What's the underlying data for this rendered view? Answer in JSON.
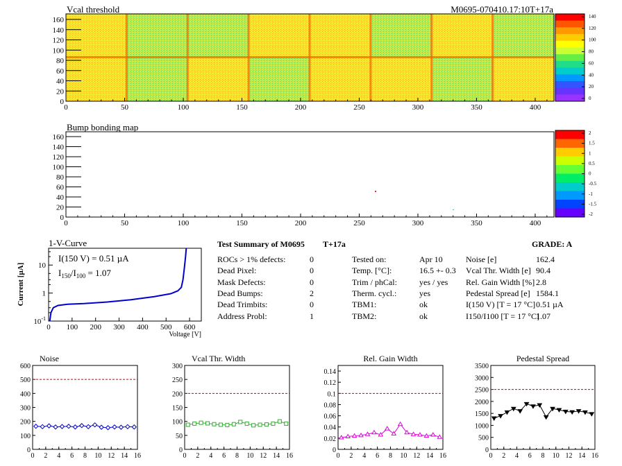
{
  "header": {
    "vcal_title": "Vcal threshold",
    "module_id": "M0695-070410.17:10T+17a",
    "bump_title": "Bump bonding map"
  },
  "map_axes": {
    "x_ticks": [
      "0",
      "50",
      "100",
      "150",
      "200",
      "250",
      "300",
      "350",
      "400"
    ],
    "y_ticks": [
      "0",
      "20",
      "40",
      "60",
      "80",
      "100",
      "120",
      "140",
      "160"
    ],
    "xlim": [
      0,
      416
    ],
    "ylim": [
      0,
      160
    ]
  },
  "vcal_palette": {
    "labels": [
      "140",
      "120",
      "100",
      "80",
      "60",
      "40",
      "20",
      "0"
    ],
    "colors": [
      "#ff0000",
      "#ff5500",
      "#ff9900",
      "#ffcc00",
      "#ffff00",
      "#ccff33",
      "#66ee44",
      "#22dd88",
      "#00cccc",
      "#0099ff",
      "#3355ff",
      "#6633ff",
      "#9933ff"
    ]
  },
  "bump_palette": {
    "labels": [
      "2",
      "1.5",
      "1",
      "0.5",
      "0",
      "-0.5",
      "-1",
      "-1.5",
      "-2"
    ],
    "colors": [
      "#ff0000",
      "#ff6600",
      "#ffcc00",
      "#ccff00",
      "#66ff33",
      "#00ee66",
      "#00cccc",
      "#0099ff",
      "#0044ff",
      "#6600ff"
    ]
  },
  "iv_curve": {
    "title": "1-V-Curve",
    "ylabel": "Current [µA]",
    "xlabel": "Voltage [V]",
    "i150_label": "I(150 V) = 0.51 µA",
    "ratio_label_i": "I",
    "ratio_sub1": "150",
    "ratio_slash": "/I",
    "ratio_sub2": "100",
    "ratio_value": " =  1.07",
    "x_ticks": [
      "0",
      "100",
      "200",
      "300",
      "400",
      "500",
      "600"
    ],
    "y_ticks": [
      "1",
      "10"
    ],
    "y_min_base": "10",
    "y_min_exp": "-1"
  },
  "summary": {
    "title": "Test Summary of M0695",
    "temp_tag": "T+17a",
    "grade_label": "GRADE:  A",
    "col1": [
      {
        "label": "ROCs > 1% defects:",
        "value": "0"
      },
      {
        "label": "Dead Pixel:",
        "value": "0"
      },
      {
        "label": "Mask Defects:",
        "value": "0"
      },
      {
        "label": "Dead Bumps:",
        "value": "2"
      },
      {
        "label": "Dead Trimbits:",
        "value": "0"
      },
      {
        "label": "Address Probl:",
        "value": "1"
      }
    ],
    "col2": [
      {
        "label": "Tested on:",
        "value": "Apr 10"
      },
      {
        "label": "Temp. [°C]:",
        "value": "16.5 +- 0.3"
      },
      {
        "label": "Trim / phCal:",
        "value": "yes / yes"
      },
      {
        "label": "Therm. cycl.:",
        "value": "yes"
      },
      {
        "label": "TBM1:",
        "value": "ok"
      },
      {
        "label": "TBM2:",
        "value": "ok"
      }
    ],
    "col3": [
      {
        "label": "Noise [e]",
        "value": "162.4"
      },
      {
        "label": "Vcal Thr. Width [e]",
        "value": "90.4"
      },
      {
        "label": "Rel. Gain Width [%]",
        "value": "2.8"
      },
      {
        "label": "Pedestal Spread [e]",
        "value": "1584.1"
      },
      {
        "label": "I(150 V) [T = 17 °C]",
        "value": "0.51 µA"
      },
      {
        "label": "I150/I100  [T = 17 °C]",
        "value": "1.07"
      }
    ]
  },
  "chart_data": [
    {
      "type": "line",
      "title": "Noise",
      "x": [
        0,
        1,
        2,
        3,
        4,
        5,
        6,
        7,
        8,
        9,
        10,
        11,
        12,
        13,
        14,
        15
      ],
      "values": [
        165,
        162,
        168,
        160,
        163,
        165,
        160,
        170,
        162,
        175,
        158,
        155,
        160,
        158,
        162,
        160
      ],
      "ylim": [
        0,
        600
      ],
      "xlim": [
        0,
        16
      ],
      "y_ticks": [
        "0",
        "100",
        "200",
        "300",
        "400",
        "500",
        "600"
      ],
      "x_ticks": [
        "0",
        "2",
        "4",
        "6",
        "8",
        "10",
        "12",
        "14",
        "16"
      ],
      "reference": 500,
      "color": "#0000cc",
      "marker": "diamond"
    },
    {
      "type": "line",
      "title": "Vcal Thr. Width",
      "x": [
        0,
        1,
        2,
        3,
        4,
        5,
        6,
        7,
        8,
        9,
        10,
        11,
        12,
        13,
        14,
        15
      ],
      "values": [
        88,
        92,
        95,
        93,
        90,
        88,
        87,
        90,
        98,
        92,
        86,
        88,
        89,
        92,
        100,
        92
      ],
      "ylim": [
        0,
        300
      ],
      "xlim": [
        0,
        16
      ],
      "y_ticks": [
        "0",
        "50",
        "100",
        "150",
        "200",
        "250",
        "300"
      ],
      "x_ticks": [
        "0",
        "2",
        "4",
        "6",
        "8",
        "10",
        "12",
        "14",
        "16"
      ],
      "reference": 200,
      "color": "#33aa33",
      "marker": "square"
    },
    {
      "type": "line",
      "title": "Rel. Gain Width",
      "x": [
        0,
        1,
        2,
        3,
        4,
        5,
        6,
        7,
        8,
        9,
        10,
        11,
        12,
        13,
        14,
        15
      ],
      "values": [
        0.021,
        0.023,
        0.024,
        0.025,
        0.027,
        0.03,
        0.026,
        0.037,
        0.028,
        0.045,
        0.03,
        0.027,
        0.026,
        0.024,
        0.026,
        0.022
      ],
      "ylim": [
        0,
        0.15
      ],
      "xlim": [
        0,
        16
      ],
      "y_ticks": [
        "0",
        "0.02",
        "0.04",
        "0.06",
        "0.08",
        "0.1",
        "0.12",
        "0.14"
      ],
      "x_ticks": [
        "0",
        "2",
        "4",
        "6",
        "8",
        "10",
        "12",
        "14",
        "16"
      ],
      "reference": 0.1,
      "color": "#dd00dd",
      "marker": "triangle-up"
    },
    {
      "type": "line",
      "title": "Pedestal Spread",
      "x": [
        0,
        1,
        2,
        3,
        4,
        5,
        6,
        7,
        8,
        9,
        10,
        11,
        12,
        13,
        14,
        15
      ],
      "values": [
        1300,
        1400,
        1550,
        1700,
        1600,
        1900,
        1800,
        1850,
        1350,
        1700,
        1650,
        1580,
        1560,
        1600,
        1550,
        1480
      ],
      "ylim": [
        0,
        3500
      ],
      "xlim": [
        0,
        16
      ],
      "y_ticks": [
        "0",
        "500",
        "1000",
        "1500",
        "2000",
        "2500",
        "3000",
        "3500"
      ],
      "x_ticks": [
        "0",
        "2",
        "4",
        "6",
        "8",
        "10",
        "12",
        "14",
        "16"
      ],
      "reference": 2500,
      "color": "#000000",
      "marker": "triangle-down"
    }
  ]
}
